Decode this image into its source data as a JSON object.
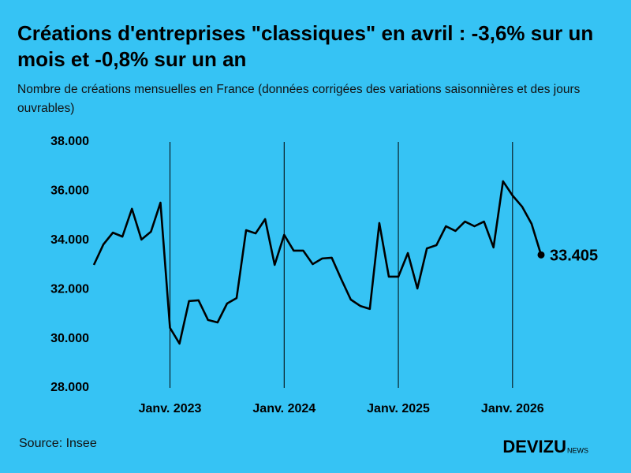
{
  "chart_data": {
    "type": "line",
    "title": "Créations d'entreprises \"classiques\" en avril : -3,6% sur un mois et -0,8% sur un an",
    "subtitle": "Nombre de créations mensuelles en France (données corrigées des variations saisonnières et des jours ouvrables)",
    "source": "Source: Insee",
    "brand": "DEVIZU",
    "brand_suffix": "NEWS",
    "categories": [
      null,
      null,
      null,
      null,
      null,
      null,
      null,
      null,
      "Janv. 2023",
      null,
      null,
      null,
      null,
      null,
      null,
      null,
      null,
      null,
      null,
      null,
      "Janv. 2024",
      null,
      null,
      null,
      null,
      null,
      null,
      null,
      null,
      null,
      null,
      null,
      "Janv. 2025",
      null,
      null,
      null,
      null,
      null,
      null,
      null,
      null,
      null,
      null,
      null,
      "Janv. 2026",
      null,
      null,
      null
    ],
    "series": [
      {
        "color": "#000000",
        "values": [
          33000,
          33830,
          34310,
          34150,
          35280,
          34030,
          34350,
          35530,
          30440,
          29800,
          31530,
          31560,
          30760,
          30660,
          31430,
          31650,
          34410,
          34280,
          34860,
          33000,
          34220,
          33580,
          33580,
          33030,
          33260,
          33290,
          32420,
          31590,
          31330,
          31210,
          34700,
          32520,
          32520,
          33480,
          32040,
          33670,
          33800,
          34570,
          34380,
          34760,
          34570,
          34760,
          33710,
          36400,
          35820,
          35370,
          34670,
          33405
        ],
        "value_labels": [
          null,
          null,
          null,
          null,
          null,
          null,
          null,
          null,
          null,
          null,
          null,
          null,
          null,
          null,
          null,
          null,
          null,
          null,
          null,
          null,
          null,
          null,
          null,
          null,
          null,
          null,
          null,
          null,
          null,
          null,
          null,
          null,
          null,
          null,
          null,
          null,
          null,
          null,
          null,
          null,
          null,
          null,
          null,
          null,
          null,
          null,
          null,
          "33.405"
        ]
      }
    ],
    "ylim": [
      28000,
      38000
    ],
    "yticks": [
      {
        "value": 28000,
        "label": "28.000"
      },
      {
        "value": 30000,
        "label": "30.000"
      },
      {
        "value": 32000,
        "label": "32.000"
      },
      {
        "value": 34000,
        "label": "34.000"
      },
      {
        "value": 36000,
        "label": "36.000"
      },
      {
        "value": 38000,
        "label": "38.000"
      }
    ],
    "background": "#36c3f4"
  }
}
